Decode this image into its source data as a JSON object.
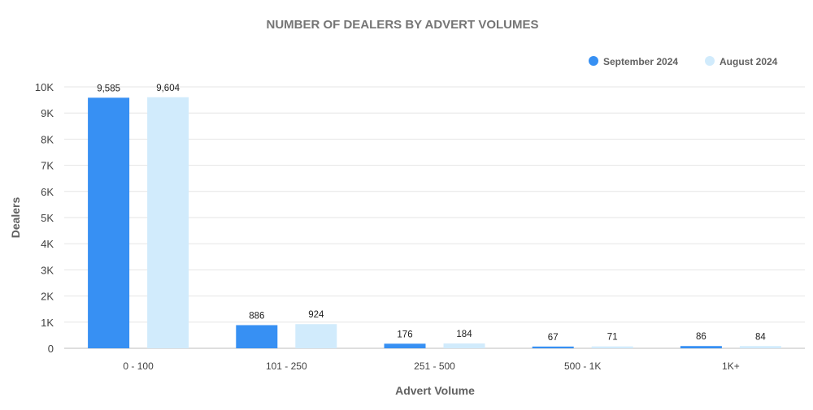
{
  "chart_data": {
    "type": "bar",
    "title": "NUMBER OF DEALERS BY ADVERT VOLUMES",
    "xlabel": "Advert Volume",
    "ylabel": "Dealers",
    "categories": [
      "0 - 100",
      "101 - 250",
      "251 - 500",
      "500 - 1K",
      "1K+"
    ],
    "series": [
      {
        "name": "September 2024",
        "values": [
          9585,
          886,
          176,
          67,
          86
        ],
        "labels": [
          "9,585",
          "886",
          "176",
          "67",
          "86"
        ],
        "color": "#3790F3"
      },
      {
        "name": "August 2024",
        "values": [
          9604,
          924,
          184,
          71,
          84
        ],
        "labels": [
          "9,604",
          "924",
          "184",
          "71",
          "84"
        ],
        "color": "#D1EBFC"
      }
    ],
    "ylim": [
      0,
      10000
    ],
    "yticks": [
      0,
      1000,
      2000,
      3000,
      4000,
      5000,
      6000,
      7000,
      8000,
      9000,
      10000
    ],
    "ytick_labels": [
      "0",
      "1K",
      "2K",
      "3K",
      "4K",
      "5K",
      "6K",
      "7K",
      "8K",
      "9K",
      "10K"
    ],
    "grid": true,
    "legend_position": "top-right"
  }
}
